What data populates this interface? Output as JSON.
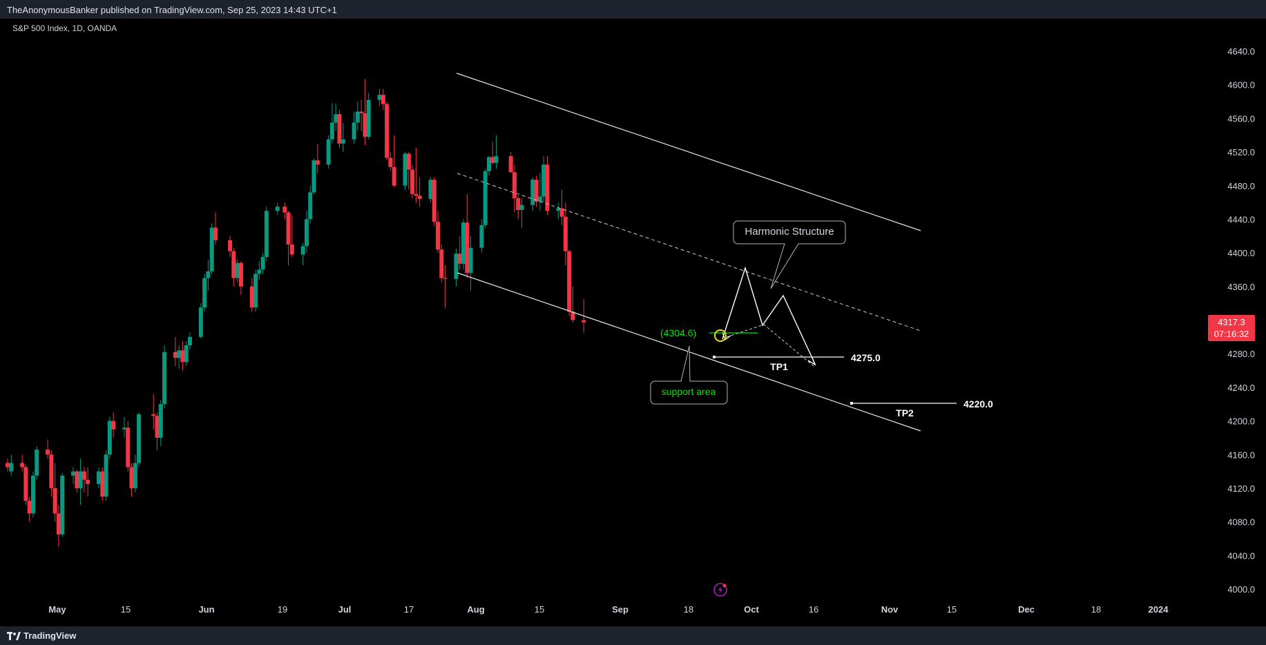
{
  "header": {
    "published_text": "TheAnonymousBanker published on TradingView.com, Sep 25, 2023 14:43 UTC+1"
  },
  "chart": {
    "symbol_text": "S&P 500 Index, 1D, OANDA",
    "price_labels": [
      "4640.0",
      "4600.0",
      "4560.0",
      "4520.0",
      "4480.0",
      "4440.0",
      "4400.0",
      "4360.0",
      "4320.0",
      "4280.0",
      "4240.0",
      "4200.0",
      "4160.0",
      "4120.0",
      "4080.0",
      "4040.0",
      "4000.0"
    ],
    "last_price": "4317.3",
    "countdown": "07:16:32",
    "time_labels": [
      {
        "text": "May",
        "bold": true
      },
      {
        "text": "15",
        "bold": false
      },
      {
        "text": "Jun",
        "bold": true
      },
      {
        "text": "19",
        "bold": false
      },
      {
        "text": "Jul",
        "bold": true
      },
      {
        "text": "17",
        "bold": false
      },
      {
        "text": "Aug",
        "bold": true
      },
      {
        "text": "15",
        "bold": false
      },
      {
        "text": "Sep",
        "bold": true
      },
      {
        "text": "18",
        "bold": false
      },
      {
        "text": "Oct",
        "bold": true
      },
      {
        "text": "16",
        "bold": false
      },
      {
        "text": "Nov",
        "bold": true
      },
      {
        "text": "15",
        "bold": false
      },
      {
        "text": "Dec",
        "bold": true
      },
      {
        "text": "18",
        "bold": false
      },
      {
        "text": "2024",
        "bold": true
      }
    ],
    "annotations": {
      "harmonic": "Harmonic Structure",
      "support": "support area",
      "level_label": "(4304.6)",
      "tp1_label": "TP1",
      "tp1_value": "4275.0",
      "tp2_label": "TP2",
      "tp2_value": "4220.0"
    },
    "colors": {
      "up": "#089981",
      "down": "#f23645",
      "level": "#00e600",
      "price_tag": "#f23645"
    }
  },
  "footer": {
    "logo_text": "TradingView"
  },
  "chart_data": {
    "type": "candlestick",
    "title": "S&P 500 Index, 1D, OANDA",
    "xlabel": "",
    "ylabel": "",
    "ylim": [
      4000,
      4640
    ],
    "x_range": [
      "2023-04-20",
      "2024-01-05"
    ],
    "candles": [
      [
        "2023-04-20",
        4150,
        4155,
        4140,
        4145
      ],
      [
        "2023-04-21",
        4140,
        4160,
        4135,
        4150
      ],
      [
        "2023-04-24",
        4150,
        4160,
        4140,
        4145
      ],
      [
        "2023-04-25",
        4145,
        4148,
        4100,
        4105
      ],
      [
        "2023-04-26",
        4105,
        4110,
        4080,
        4090
      ],
      [
        "2023-04-27",
        4090,
        4140,
        4085,
        4135
      ],
      [
        "2023-04-28",
        4135,
        4170,
        4130,
        4166
      ],
      [
        "2023-05-01",
        4166,
        4178,
        4155,
        4160
      ],
      [
        "2023-05-02",
        4160,
        4165,
        4110,
        4120
      ],
      [
        "2023-05-03",
        4120,
        4150,
        4080,
        4090
      ],
      [
        "2023-05-04",
        4090,
        4100,
        4050,
        4065
      ],
      [
        "2023-05-05",
        4065,
        4138,
        4062,
        4135
      ],
      [
        "2023-05-08",
        4135,
        4145,
        4125,
        4140
      ],
      [
        "2023-05-09",
        4140,
        4142,
        4115,
        4120
      ],
      [
        "2023-05-10",
        4120,
        4155,
        4100,
        4140
      ],
      [
        "2023-05-11",
        4140,
        4145,
        4115,
        4130
      ],
      [
        "2023-05-12",
        4130,
        4145,
        4110,
        4125
      ],
      [
        "2023-05-15",
        4125,
        4145,
        4120,
        4140
      ],
      [
        "2023-05-16",
        4140,
        4145,
        4105,
        4110
      ],
      [
        "2023-05-17",
        4110,
        4165,
        4105,
        4160
      ],
      [
        "2023-05-18",
        4160,
        4205,
        4155,
        4200
      ],
      [
        "2023-05-19",
        4200,
        4210,
        4180,
        4190
      ],
      [
        "2023-05-22",
        4190,
        4205,
        4180,
        4192
      ],
      [
        "2023-05-23",
        4192,
        4200,
        4140,
        4145
      ],
      [
        "2023-05-24",
        4145,
        4150,
        4110,
        4120
      ],
      [
        "2023-05-25",
        4120,
        4160,
        4115,
        4150
      ],
      [
        "2023-05-26",
        4150,
        4210,
        4145,
        4208
      ],
      [
        "2023-05-30",
        4208,
        4232,
        4190,
        4206
      ],
      [
        "2023-05-31",
        4206,
        4210,
        4165,
        4180
      ],
      [
        "2023-06-01",
        4180,
        4225,
        4170,
        4220
      ],
      [
        "2023-06-02",
        4220,
        4290,
        4215,
        4282
      ],
      [
        "2023-06-05",
        4282,
        4300,
        4265,
        4275
      ],
      [
        "2023-06-06",
        4275,
        4290,
        4262,
        4284
      ],
      [
        "2023-06-07",
        4284,
        4295,
        4260,
        4270
      ],
      [
        "2023-06-08",
        4270,
        4295,
        4265,
        4290
      ],
      [
        "2023-06-09",
        4290,
        4305,
        4285,
        4300
      ],
      [
        "2023-06-12",
        4300,
        4340,
        4298,
        4335
      ],
      [
        "2023-06-13",
        4335,
        4375,
        4330,
        4370
      ],
      [
        "2023-06-14",
        4370,
        4392,
        4355,
        4378
      ],
      [
        "2023-06-15",
        4378,
        4435,
        4375,
        4430
      ],
      [
        "2023-06-16",
        4430,
        4448,
        4410,
        4415
      ],
      [
        "2023-06-20",
        4415,
        4420,
        4395,
        4402
      ],
      [
        "2023-06-21",
        4402,
        4406,
        4360,
        4370
      ],
      [
        "2023-06-22",
        4370,
        4392,
        4365,
        4388
      ],
      [
        "2023-06-23",
        4388,
        4390,
        4350,
        4360
      ],
      [
        "2023-06-26",
        4360,
        4370,
        4330,
        4335
      ],
      [
        "2023-06-27",
        4335,
        4380,
        4330,
        4375
      ],
      [
        "2023-06-28",
        4375,
        4390,
        4368,
        4380
      ],
      [
        "2023-06-29",
        4380,
        4400,
        4375,
        4395
      ],
      [
        "2023-06-30",
        4395,
        4455,
        4390,
        4450
      ],
      [
        "2023-07-03",
        4450,
        4460,
        4445,
        4455
      ],
      [
        "2023-07-05",
        4455,
        4460,
        4440,
        4448
      ],
      [
        "2023-07-06",
        4448,
        4450,
        4385,
        4410
      ],
      [
        "2023-07-07",
        4410,
        4445,
        4395,
        4398
      ],
      [
        "2023-07-10",
        4398,
        4412,
        4385,
        4408
      ],
      [
        "2023-07-11",
        4408,
        4450,
        4400,
        4440
      ],
      [
        "2023-07-12",
        4440,
        4480,
        4435,
        4472
      ],
      [
        "2023-07-13",
        4472,
        4512,
        4470,
        4510
      ],
      [
        "2023-07-14",
        4510,
        4530,
        4495,
        4505
      ],
      [
        "2023-07-17",
        4505,
        4540,
        4500,
        4535
      ],
      [
        "2023-07-18",
        4535,
        4578,
        4530,
        4555
      ],
      [
        "2023-07-19",
        4555,
        4578,
        4545,
        4565
      ],
      [
        "2023-07-20",
        4565,
        4570,
        4525,
        4530
      ],
      [
        "2023-07-21",
        4530,
        4555,
        4520,
        4535
      ],
      [
        "2023-07-24",
        4535,
        4568,
        4530,
        4555
      ],
      [
        "2023-07-25",
        4555,
        4580,
        4545,
        4568
      ],
      [
        "2023-07-26",
        4568,
        4582,
        4545,
        4566
      ],
      [
        "2023-07-27",
        4566,
        4607,
        4528,
        4538
      ],
      [
        "2023-07-28",
        4538,
        4590,
        4535,
        4582
      ],
      [
        "2023-07-31",
        4582,
        4595,
        4575,
        4588
      ],
      [
        "2023-08-01",
        4588,
        4595,
        4570,
        4577
      ],
      [
        "2023-08-02",
        4577,
        4580,
        4510,
        4513
      ],
      [
        "2023-08-03",
        4513,
        4520,
        4498,
        4502
      ],
      [
        "2023-08-04",
        4502,
        4540,
        4478,
        4480
      ],
      [
        "2023-08-07",
        4480,
        4520,
        4475,
        4518
      ],
      [
        "2023-08-08",
        4518,
        4520,
        4475,
        4499
      ],
      [
        "2023-08-09",
        4499,
        4505,
        4465,
        4470
      ],
      [
        "2023-08-10",
        4470,
        4525,
        4460,
        4468
      ],
      [
        "2023-08-11",
        4468,
        4490,
        4455,
        4464
      ],
      [
        "2023-08-14",
        4464,
        4490,
        4460,
        4487
      ],
      [
        "2023-08-15",
        4487,
        4490,
        4432,
        4437
      ],
      [
        "2023-08-16",
        4437,
        4450,
        4400,
        4404
      ],
      [
        "2023-08-17",
        4404,
        4410,
        4365,
        4370
      ],
      [
        "2023-08-18",
        4370,
        4385,
        4335,
        4369
      ],
      [
        "2023-08-21",
        4369,
        4405,
        4360,
        4399
      ],
      [
        "2023-08-22",
        4399,
        4420,
        4380,
        4387
      ],
      [
        "2023-08-23",
        4387,
        4440,
        4380,
        4436
      ],
      [
        "2023-08-24",
        4436,
        4470,
        4370,
        4376
      ],
      [
        "2023-08-25",
        4376,
        4420,
        4355,
        4406
      ],
      [
        "2023-08-28",
        4406,
        4440,
        4400,
        4433
      ],
      [
        "2023-08-29",
        4433,
        4500,
        4430,
        4497
      ],
      [
        "2023-08-30",
        4497,
        4515,
        4492,
        4514
      ],
      [
        "2023-08-31",
        4514,
        4532,
        4505,
        4507
      ],
      [
        "2023-09-01",
        4507,
        4540,
        4500,
        4515
      ],
      [
        "2023-09-05",
        4515,
        4520,
        4495,
        4496
      ],
      [
        "2023-09-06",
        4496,
        4505,
        4448,
        4465
      ],
      [
        "2023-09-07",
        4465,
        4468,
        4440,
        4451
      ],
      [
        "2023-09-08",
        4451,
        4465,
        4430,
        4457
      ],
      [
        "2023-09-11",
        4457,
        4490,
        4450,
        4487
      ],
      [
        "2023-09-12",
        4487,
        4492,
        4455,
        4461
      ],
      [
        "2023-09-13",
        4461,
        4495,
        4450,
        4467
      ],
      [
        "2023-09-14",
        4467,
        4515,
        4460,
        4505
      ],
      [
        "2023-09-15",
        4505,
        4515,
        4445,
        4450
      ],
      [
        "2023-09-18",
        4450,
        4460,
        4440,
        4453
      ],
      [
        "2023-09-19",
        4453,
        4475,
        4433,
        4443
      ],
      [
        "2023-09-20",
        4443,
        4460,
        4385,
        4402
      ],
      [
        "2023-09-21",
        4402,
        4404,
        4325,
        4330
      ],
      [
        "2023-09-22",
        4330,
        4360,
        4317,
        4320
      ],
      [
        "2023-09-25",
        4320,
        4345,
        4305,
        4317.3
      ]
    ],
    "channel": {
      "upper": [
        [
          "2023-07-27",
          4611
        ],
        [
          "2023-10-25",
          4428
        ]
      ],
      "lower": [
        [
          "2023-07-27",
          4387
        ],
        [
          "2023-10-25",
          4187
        ]
      ],
      "median": [
        [
          "2023-07-27",
          4500
        ],
        [
          "2023-10-25",
          4307
        ]
      ]
    },
    "projection": [
      [
        "2023-09-25",
        4301
      ],
      [
        "2023-09-29",
        4381
      ],
      [
        "2023-10-03",
        4310
      ],
      [
        "2023-10-06",
        4346
      ],
      [
        "2023-10-13",
        4269
      ]
    ],
    "levels": [
      {
        "label": "(4304.6)",
        "value": 4304.6
      },
      {
        "label": "TP1",
        "value": 4275.0
      },
      {
        "label": "TP2",
        "value": 4220.0
      }
    ]
  }
}
